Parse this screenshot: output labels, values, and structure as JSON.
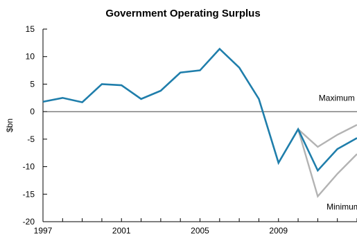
{
  "chart_data": {
    "type": "line",
    "title": "Government Operating Surplus",
    "xlabel": "",
    "ylabel": "$bn",
    "xlim": [
      1997,
      2013
    ],
    "ylim": [
      -20,
      15
    ],
    "x_ticks": [
      1997,
      2001,
      2005,
      2009
    ],
    "y_ticks": [
      15,
      10,
      5,
      0,
      -5,
      -10,
      -15,
      -20
    ],
    "grid": false,
    "zero_line": true,
    "series": [
      {
        "role": "main",
        "color": "#1f7eab",
        "points": [
          [
            1997,
            1.8
          ],
          [
            1998,
            2.5
          ],
          [
            1999,
            1.7
          ],
          [
            2000,
            5.0
          ],
          [
            2001,
            4.8
          ],
          [
            2002,
            2.3
          ],
          [
            2003,
            3.8
          ],
          [
            2004,
            7.1
          ],
          [
            2005,
            7.5
          ],
          [
            2006,
            11.4
          ],
          [
            2007,
            8.0
          ],
          [
            2008,
            2.3
          ],
          [
            2009,
            -9.3
          ],
          [
            2010,
            -3.2
          ],
          [
            2011,
            -10.7
          ],
          [
            2012,
            -6.8
          ],
          [
            2013,
            -4.8
          ]
        ]
      },
      {
        "role": "maximum",
        "color": "#b3b3b3",
        "points": [
          [
            2010,
            -3.2
          ],
          [
            2011,
            -6.4
          ],
          [
            2012,
            -4.2
          ],
          [
            2013,
            -2.4
          ]
        ]
      },
      {
        "role": "minimum",
        "color": "#b3b3b3",
        "points": [
          [
            2010,
            -3.2
          ],
          [
            2011,
            -15.4
          ],
          [
            2012,
            -11.3
          ],
          [
            2013,
            -7.7
          ]
        ]
      }
    ],
    "annotations": [
      {
        "text": "Maximum",
        "x": 2011.05,
        "y": 2.0
      },
      {
        "text": "Minimum",
        "x": 2011.45,
        "y": -17.8
      }
    ]
  }
}
